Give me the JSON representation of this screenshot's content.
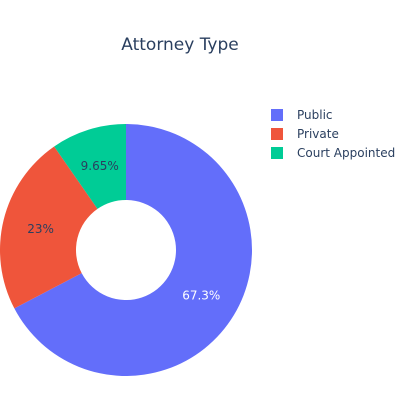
{
  "chart_data": {
    "type": "pie",
    "hole": true,
    "title": "Attorney Type",
    "slices": [
      {
        "name": "Public",
        "value": 67.3,
        "label": "67.3%",
        "color": "#636efa",
        "label_color": "#ffffff"
      },
      {
        "name": "Private",
        "value": 23.0,
        "label": "23%",
        "color": "#ef553b",
        "label_color": "#2a3f5f"
      },
      {
        "name": "Court Appointed",
        "value": 9.65,
        "label": "9.65%",
        "color": "#00cc96",
        "label_color": "#2a3f5f"
      }
    ],
    "legend": {
      "placement": "top-right",
      "items": [
        "Public",
        "Private",
        "Court Appointed"
      ]
    },
    "direction": "clockwise",
    "start": "top"
  }
}
